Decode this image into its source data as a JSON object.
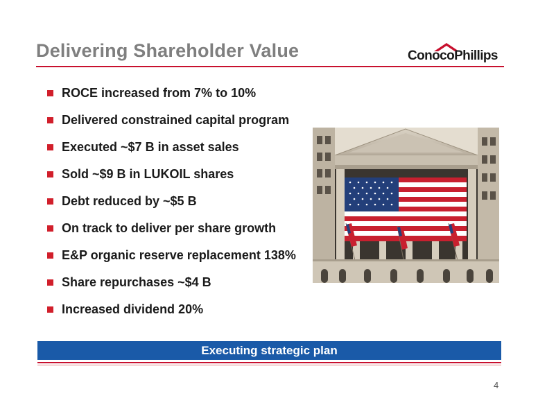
{
  "slide": {
    "title": "Delivering Shareholder Value",
    "logo_text": "ConocoPhillips",
    "bullets": [
      "ROCE increased from 7% to 10%",
      "Delivered constrained capital program",
      "Executed ~$7 B in asset sales",
      "Sold ~$9 B in LUKOIL shares",
      "Debt reduced by ~$5 B",
      "On track to deliver per share growth",
      "E&P organic reserve replacement 138%",
      "Share repurchases ~$4 B",
      "Increased dividend 20%"
    ],
    "banner_text": "Executing strategic plan",
    "page_number": "4"
  },
  "colors": {
    "title": "#7f7f7f",
    "accent_red": "#c8102e",
    "bullet_red": "#d11f2b",
    "banner_blue": "#1a5aa8"
  }
}
